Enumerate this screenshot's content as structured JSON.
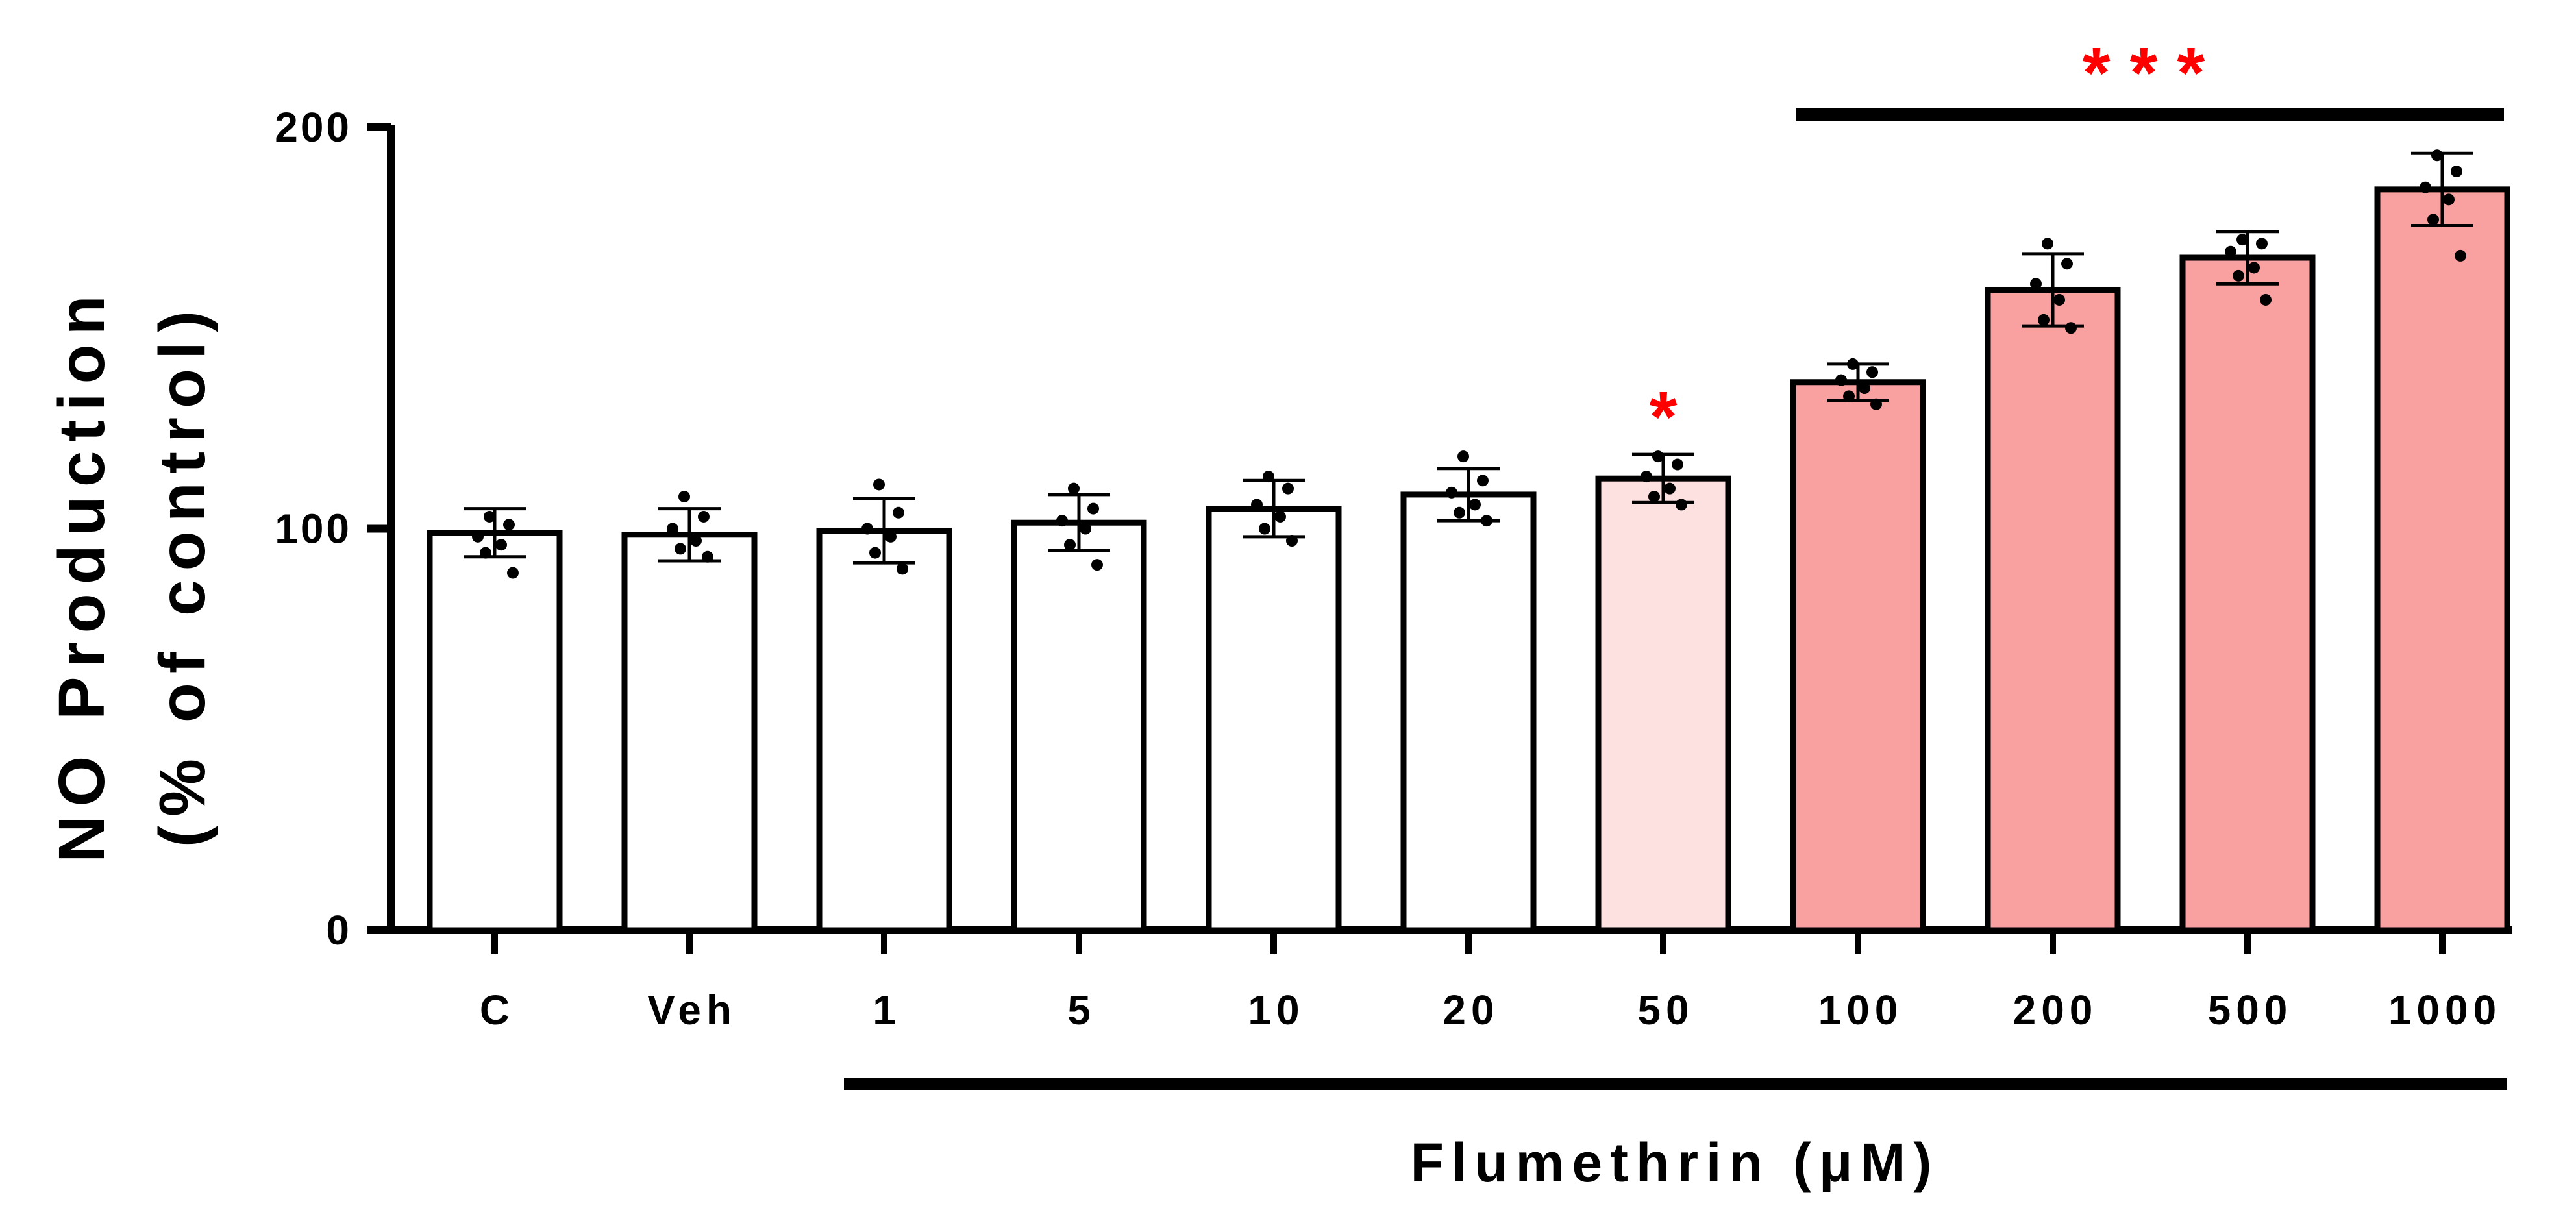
{
  "chart_data": {
    "type": "bar",
    "title": "",
    "ylabel_lines": [
      "NO Production",
      "(% of control)"
    ],
    "xlabel": "Flumethrin (μM)",
    "ylim": [
      0,
      200
    ],
    "yticks": [
      0,
      100,
      200
    ],
    "ytick_labels": [
      "0",
      "100",
      "200"
    ],
    "categories": [
      "C",
      "Veh",
      "1",
      "5",
      "10",
      "20",
      "50",
      "100",
      "200",
      "500",
      "1000"
    ],
    "values": [
      99,
      98.5,
      99.5,
      101.5,
      105,
      108.5,
      112.5,
      136.5,
      159.5,
      167.5,
      184.5
    ],
    "errors": [
      6,
      6.5,
      8,
      7,
      7,
      6.5,
      6,
      4.5,
      9,
      6.5,
      9
    ],
    "points": [
      [
        103,
        101,
        98,
        96,
        94,
        89
      ],
      [
        108,
        103,
        100,
        97,
        95,
        93
      ],
      [
        111,
        104,
        100,
        98,
        94,
        90
      ],
      [
        110,
        105,
        102,
        100,
        96,
        91
      ],
      [
        113,
        110,
        106,
        103,
        100,
        97
      ],
      [
        118,
        112,
        109,
        106,
        104,
        102
      ],
      [
        118,
        116,
        113,
        110,
        108,
        106
      ],
      [
        141,
        139,
        137,
        135,
        133,
        131
      ],
      [
        171,
        166,
        161,
        157,
        152,
        150
      ],
      [
        172,
        171,
        169,
        165,
        163,
        157
      ],
      [
        193,
        189,
        185,
        182,
        177,
        168
      ]
    ],
    "bar_colors": [
      "#ffffff",
      "#ffffff",
      "#ffffff",
      "#ffffff",
      "#ffffff",
      "#ffffff",
      "#fde0e0",
      "#f9a0a0",
      "#f9a0a0",
      "#f9a0a0",
      "#f9a0a0"
    ],
    "significance": [
      {
        "label": "*",
        "categories": [
          "50"
        ]
      },
      {
        "label": "***",
        "categories": [
          "100",
          "200",
          "500",
          "1000"
        ]
      }
    ],
    "treatment_bracket_categories": [
      "1",
      "1000"
    ],
    "significance_color": "#ff0000",
    "grid": false,
    "legend": "none"
  }
}
